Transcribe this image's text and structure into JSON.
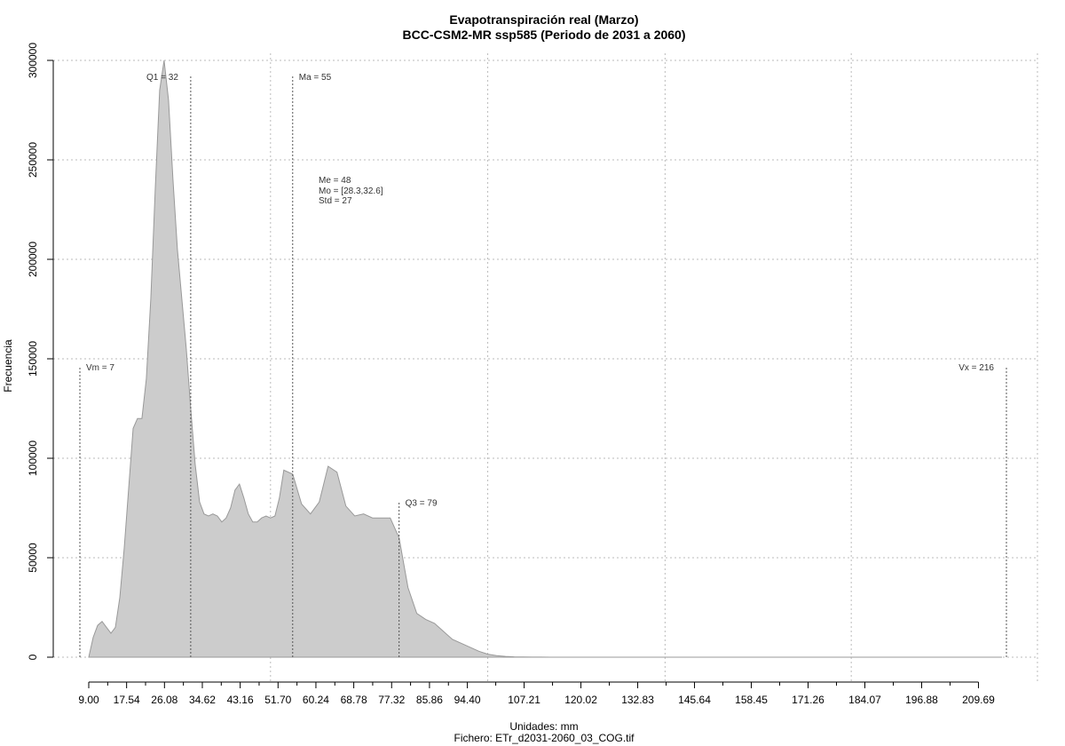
{
  "chart_data": {
    "type": "area",
    "title": "Evapotranspiración real (Marzo)",
    "subtitle": "BCC-CSM2-MR ssp585 (Periodo de 2031 a 2060)",
    "xlabel": "Unidades: mm",
    "ylabel": "Frecuencia",
    "caption": "Fichero: ETr_d2031-2060_03_COG.tif",
    "xlim": [
      5,
      217
    ],
    "ylim": [
      0,
      300000
    ],
    "grid": true,
    "x_ticks": [
      9.0,
      17.54,
      26.08,
      34.62,
      43.16,
      51.7,
      60.24,
      68.78,
      77.32,
      85.86,
      94.4,
      107.21,
      120.02,
      132.83,
      145.64,
      158.45,
      171.26,
      184.07,
      196.88,
      209.69
    ],
    "x_tick_labels": [
      "9.00",
      "17.54",
      "26.08",
      "34.62",
      "43.16",
      "51.70",
      "60.24",
      "68.78",
      "77.32",
      "85.86",
      "94.40",
      "107.21",
      "120.02",
      "132.83",
      "145.64",
      "158.45",
      "171.26",
      "184.07",
      "196.88",
      "209.69"
    ],
    "y_ticks": [
      0,
      50000,
      100000,
      150000,
      200000,
      250000,
      300000
    ],
    "y_tick_labels": [
      "0",
      "50000",
      "100000",
      "150000",
      "200000",
      "250000",
      "300000"
    ],
    "x": [
      9,
      10,
      11,
      12,
      13,
      14,
      15,
      16,
      17,
      18,
      19,
      20,
      21,
      22,
      23,
      24,
      25,
      26,
      27,
      28,
      29,
      30,
      31,
      32,
      33,
      34,
      35,
      36,
      37,
      38,
      39,
      40,
      41,
      42,
      43,
      44,
      45,
      46,
      47,
      48,
      49,
      50,
      51,
      52,
      53,
      55,
      57,
      59,
      61,
      63,
      65,
      67,
      69,
      71,
      73,
      75,
      77,
      79,
      81,
      83,
      85,
      87,
      89,
      91,
      93,
      95,
      97,
      99,
      101,
      103,
      105,
      107,
      109,
      111,
      113,
      115,
      117,
      119,
      121,
      123,
      125,
      127,
      129,
      131,
      133,
      135,
      140,
      150,
      160,
      170,
      180,
      190,
      200,
      210,
      215
    ],
    "values": [
      0,
      10000,
      16000,
      18000,
      15000,
      12000,
      15000,
      30000,
      55000,
      85000,
      115000,
      120000,
      120000,
      140000,
      180000,
      235000,
      285000,
      300000,
      280000,
      240000,
      205000,
      180000,
      155000,
      125000,
      97000,
      78000,
      72000,
      71000,
      72000,
      71000,
      68000,
      70000,
      75000,
      84000,
      87000,
      80000,
      72000,
      68000,
      68000,
      70000,
      71000,
      70000,
      71000,
      80000,
      94000,
      92000,
      77000,
      72000,
      78000,
      96000,
      93000,
      76000,
      71000,
      72000,
      70000,
      70000,
      70000,
      60000,
      35000,
      22000,
      19000,
      17000,
      13000,
      9000,
      7000,
      5000,
      3000,
      1500,
      800,
      400,
      200,
      100,
      50,
      30,
      20,
      10,
      5,
      2,
      0,
      0,
      0,
      0,
      0,
      0,
      0,
      0,
      0,
      0,
      0,
      0,
      0,
      0,
      0,
      0,
      0
    ],
    "annotations": [
      {
        "label": "Q1 = 32",
        "x": 32,
        "y": 292000,
        "side": "left"
      },
      {
        "label": "Ma = 55",
        "x": 55,
        "y": 292000,
        "side": "right"
      },
      {
        "label": "Q3 = 79",
        "x": 79,
        "y": 78000,
        "side": "right"
      },
      {
        "label": "Vm = 7",
        "x": 7,
        "y": 146000,
        "side": "right"
      },
      {
        "label": "Vx = 216",
        "x": 216,
        "y": 146000,
        "side": "left"
      }
    ],
    "stats": [
      "Me = 48",
      "Mo = [28.3,32.6]",
      "Std = 27"
    ],
    "colors": {
      "fill": "#cccccc",
      "stroke": "#999999",
      "grid": "#bbbbbb",
      "qline": "#555555"
    }
  }
}
